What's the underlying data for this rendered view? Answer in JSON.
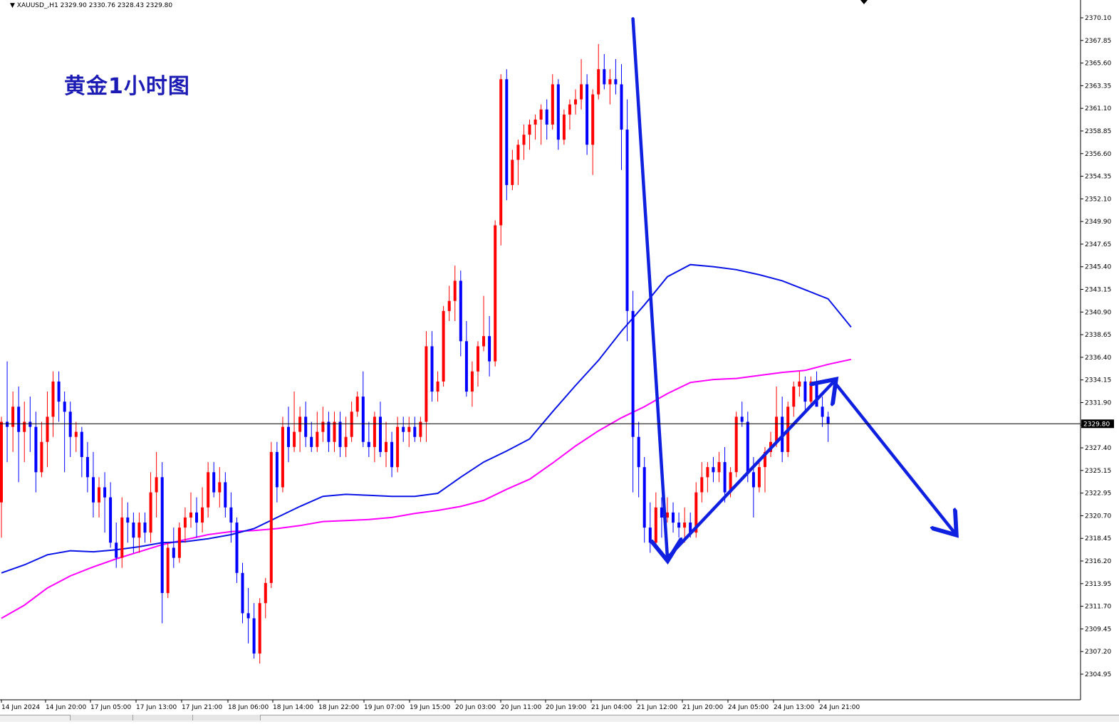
{
  "symbol": {
    "name": "XAUUSD_,H1",
    "ohlc_text": "2329.90 2330.76 2328.43 2329.80"
  },
  "title": "黄金1小时图",
  "colors": {
    "bull": "#ff0000",
    "bear": "#0000ff",
    "ma_fast": "#0a14e6",
    "ma_slow": "#ff00ff",
    "arrow": "#1020e0",
    "price_line": "#000000"
  },
  "chart_data": {
    "type": "candlestick",
    "symbol": "XAUUSD",
    "timeframe": "H1",
    "current_price": "2329.80",
    "y_ticks": [
      "2370.10",
      "2367.85",
      "2365.60",
      "2363.35",
      "2361.10",
      "2358.85",
      "2356.60",
      "2354.35",
      "2352.10",
      "2349.90",
      "2347.65",
      "2345.40",
      "2343.15",
      "2340.90",
      "2338.65",
      "2336.40",
      "2334.15",
      "2331.90",
      "2329.65",
      "2327.40",
      "2325.15",
      "2322.95",
      "2320.70",
      "2318.45",
      "2316.20",
      "2313.95",
      "2311.70",
      "2309.45",
      "2307.20",
      "2304.95"
    ],
    "x_ticks": [
      "14 Jun 2024",
      "14 Jun 20:00",
      "17 Jun 05:00",
      "17 Jun 13:00",
      "17 Jun 21:00",
      "18 Jun 06:00",
      "18 Jun 14:00",
      "18 Jun 22:00",
      "19 Jun 07:00",
      "19 Jun 15:00",
      "20 Jun 03:00",
      "20 Jun 11:00",
      "20 Jun 19:00",
      "21 Jun 04:00",
      "21 Jun 12:00",
      "21 Jun 20:00",
      "24 Jun 05:00",
      "24 Jun 13:00",
      "24 Jun 21:00"
    ],
    "ylim": [
      2304.0,
      2371.5
    ],
    "candles": [
      [
        2322.0,
        2330.5,
        2318.5,
        2330.0
      ],
      [
        2330.0,
        2336.0,
        2326.0,
        2329.5
      ],
      [
        2329.5,
        2333.0,
        2327.0,
        2331.5
      ],
      [
        2331.5,
        2333.5,
        2324.0,
        2329.0
      ],
      [
        2329.0,
        2332.0,
        2326.0,
        2330.0
      ],
      [
        2330.0,
        2332.5,
        2327.0,
        2329.5
      ],
      [
        2329.5,
        2331.0,
        2323.0,
        2325.0
      ],
      [
        2325.0,
        2330.0,
        2324.5,
        2328.0
      ],
      [
        2328.0,
        2333.0,
        2325.5,
        2330.5
      ],
      [
        2330.5,
        2335.0,
        2328.5,
        2334.0
      ],
      [
        2334.0,
        2335.0,
        2330.0,
        2332.0
      ],
      [
        2332.0,
        2333.0,
        2325.0,
        2331.0
      ],
      [
        2331.0,
        2332.0,
        2326.5,
        2328.5
      ],
      [
        2328.5,
        2330.0,
        2327.0,
        2329.0
      ],
      [
        2329.0,
        2329.5,
        2324.5,
        2326.5
      ],
      [
        2326.5,
        2328.0,
        2323.0,
        2324.5
      ],
      [
        2324.5,
        2327.0,
        2320.5,
        2322.0
      ],
      [
        2322.0,
        2324.5,
        2320.5,
        2323.5
      ],
      [
        2323.5,
        2325.0,
        2319.0,
        2322.5
      ],
      [
        2322.5,
        2324.0,
        2317.5,
        2318.0
      ],
      [
        2318.0,
        2320.0,
        2315.5,
        2316.5
      ],
      [
        2316.5,
        2322.5,
        2315.5,
        2320.5
      ],
      [
        2320.5,
        2322.0,
        2318.0,
        2320.0
      ],
      [
        2320.0,
        2321.0,
        2317.0,
        2318.5
      ],
      [
        2318.5,
        2321.0,
        2317.0,
        2320.0
      ],
      [
        2320.0,
        2321.0,
        2318.0,
        2319.0
      ],
      [
        2319.0,
        2325.0,
        2318.0,
        2323.0
      ],
      [
        2323.0,
        2327.0,
        2320.5,
        2324.5
      ],
      [
        2324.5,
        2326.0,
        2310.0,
        2313.0
      ],
      [
        2313.0,
        2318.0,
        2312.5,
        2317.5
      ],
      [
        2317.5,
        2319.5,
        2315.5,
        2316.5
      ],
      [
        2316.5,
        2320.0,
        2316.0,
        2319.5
      ],
      [
        2319.5,
        2321.5,
        2318.0,
        2320.5
      ],
      [
        2320.5,
        2323.0,
        2319.5,
        2321.0
      ],
      [
        2321.0,
        2322.5,
        2318.5,
        2320.0
      ],
      [
        2320.0,
        2323.5,
        2319.0,
        2321.5
      ],
      [
        2321.5,
        2326.0,
        2320.5,
        2325.0
      ],
      [
        2325.0,
        2326.0,
        2322.5,
        2323.0
      ],
      [
        2323.0,
        2325.5,
        2321.5,
        2324.0
      ],
      [
        2324.0,
        2325.0,
        2320.5,
        2321.5
      ],
      [
        2321.5,
        2323.0,
        2318.0,
        2320.0
      ],
      [
        2320.0,
        2320.5,
        2314.0,
        2315.0
      ],
      [
        2315.0,
        2316.0,
        2310.0,
        2311.0
      ],
      [
        2311.0,
        2313.5,
        2308.0,
        2310.5
      ],
      [
        2310.5,
        2312.0,
        2306.5,
        2307.0
      ],
      [
        2307.0,
        2312.5,
        2306.0,
        2312.0
      ],
      [
        2312.0,
        2314.5,
        2310.5,
        2314.0
      ],
      [
        2314.0,
        2328.0,
        2313.5,
        2327.0
      ],
      [
        2327.0,
        2328.0,
        2322.0,
        2323.5
      ],
      [
        2323.5,
        2330.5,
        2323.0,
        2329.5
      ],
      [
        2329.5,
        2331.5,
        2326.0,
        2327.5
      ],
      [
        2327.5,
        2333.0,
        2327.0,
        2329.0
      ],
      [
        2329.0,
        2331.5,
        2327.0,
        2330.5
      ],
      [
        2330.5,
        2332.0,
        2327.5,
        2328.5
      ],
      [
        2328.5,
        2330.0,
        2327.0,
        2327.5
      ],
      [
        2327.5,
        2331.0,
        2327.0,
        2329.0
      ],
      [
        2329.0,
        2331.5,
        2328.0,
        2330.0
      ],
      [
        2330.0,
        2331.0,
        2327.0,
        2328.0
      ],
      [
        2328.0,
        2331.0,
        2327.0,
        2330.0
      ],
      [
        2330.0,
        2331.0,
        2326.5,
        2327.5
      ],
      [
        2327.5,
        2330.5,
        2326.5,
        2328.5
      ],
      [
        2328.5,
        2332.0,
        2328.0,
        2331.0
      ],
      [
        2331.0,
        2333.0,
        2330.5,
        2332.5
      ],
      [
        2332.5,
        2335.0,
        2327.5,
        2328.0
      ],
      [
        2328.0,
        2330.0,
        2326.5,
        2327.5
      ],
      [
        2327.5,
        2331.0,
        2326.0,
        2330.5
      ],
      [
        2330.5,
        2332.0,
        2326.5,
        2327.0
      ],
      [
        2327.0,
        2330.0,
        2325.5,
        2328.0
      ],
      [
        2328.0,
        2329.0,
        2324.5,
        2325.5
      ],
      [
        2325.5,
        2330.5,
        2325.0,
        2329.5
      ],
      [
        2329.5,
        2330.5,
        2328.0,
        2329.0
      ],
      [
        2329.0,
        2330.5,
        2327.5,
        2329.5
      ],
      [
        2329.5,
        2330.5,
        2328.0,
        2328.5
      ],
      [
        2328.5,
        2330.5,
        2328.0,
        2330.0
      ],
      [
        2330.0,
        2339.0,
        2328.0,
        2337.5
      ],
      [
        2337.5,
        2339.0,
        2332.0,
        2333.0
      ],
      [
        2333.0,
        2335.0,
        2332.0,
        2334.0
      ],
      [
        2334.0,
        2341.5,
        2333.5,
        2341.0
      ],
      [
        2341.0,
        2343.5,
        2340.0,
        2342.0
      ],
      [
        2342.0,
        2345.5,
        2340.0,
        2344.0
      ],
      [
        2344.0,
        2345.0,
        2336.5,
        2338.0
      ],
      [
        2338.0,
        2340.0,
        2332.5,
        2333.0
      ],
      [
        2333.0,
        2336.0,
        2331.5,
        2335.0
      ],
      [
        2335.0,
        2338.0,
        2333.5,
        2337.5
      ],
      [
        2337.5,
        2342.5,
        2337.0,
        2338.5
      ],
      [
        2338.5,
        2340.5,
        2334.5,
        2336.0
      ],
      [
        2336.0,
        2350.0,
        2335.5,
        2349.5
      ],
      [
        2349.5,
        2364.5,
        2347.5,
        2364.0
      ],
      [
        2364.0,
        2365.0,
        2352.0,
        2353.5
      ],
      [
        2353.5,
        2357.0,
        2353.0,
        2356.0
      ],
      [
        2356.0,
        2358.0,
        2353.5,
        2357.5
      ],
      [
        2357.5,
        2359.5,
        2356.0,
        2358.5
      ],
      [
        2358.5,
        2360.0,
        2357.0,
        2359.5
      ],
      [
        2359.5,
        2360.5,
        2358.0,
        2360.0
      ],
      [
        2360.0,
        2361.5,
        2357.5,
        2361.0
      ],
      [
        2361.0,
        2362.0,
        2358.0,
        2359.5
      ],
      [
        2359.5,
        2364.5,
        2359.0,
        2363.5
      ],
      [
        2363.5,
        2364.0,
        2357.0,
        2358.0
      ],
      [
        2358.0,
        2361.0,
        2357.5,
        2360.5
      ],
      [
        2360.5,
        2362.0,
        2359.0,
        2361.5
      ],
      [
        2361.5,
        2363.0,
        2360.5,
        2362.0
      ],
      [
        2362.0,
        2366.0,
        2361.0,
        2363.5
      ],
      [
        2363.5,
        2364.5,
        2356.5,
        2357.5
      ],
      [
        2357.5,
        2363.0,
        2354.5,
        2362.5
      ],
      [
        2362.5,
        2367.5,
        2362.0,
        2365.0
      ],
      [
        2365.0,
        2366.5,
        2363.0,
        2363.5
      ],
      [
        2363.5,
        2365.0,
        2361.5,
        2364.0
      ],
      [
        2364.0,
        2366.0,
        2362.5,
        2363.5
      ],
      [
        2363.5,
        2365.5,
        2355.0,
        2359.0
      ],
      [
        2359.0,
        2362.0,
        2338.0,
        2341.0
      ],
      [
        2341.0,
        2343.0,
        2323.0,
        2328.5
      ],
      [
        2328.5,
        2330.0,
        2322.5,
        2325.5
      ],
      [
        2325.5,
        2326.5,
        2318.0,
        2319.5
      ],
      [
        2319.5,
        2322.0,
        2317.0,
        2318.0
      ],
      [
        2318.0,
        2323.0,
        2317.5,
        2321.5
      ],
      [
        2321.5,
        2322.5,
        2318.5,
        2320.5
      ],
      [
        2320.5,
        2322.5,
        2320.0,
        2321.0
      ],
      [
        2321.0,
        2322.0,
        2319.0,
        2320.0
      ],
      [
        2320.0,
        2321.0,
        2318.5,
        2319.5
      ],
      [
        2319.5,
        2321.5,
        2318.0,
        2320.0
      ],
      [
        2320.0,
        2321.0,
        2318.5,
        2319.0
      ],
      [
        2319.0,
        2324.0,
        2318.5,
        2323.0
      ],
      [
        2323.0,
        2326.0,
        2322.0,
        2324.5
      ],
      [
        2324.5,
        2326.0,
        2323.0,
        2325.5
      ],
      [
        2325.5,
        2326.5,
        2324.0,
        2325.0
      ],
      [
        2325.0,
        2327.0,
        2324.0,
        2326.0
      ],
      [
        2326.0,
        2327.5,
        2322.0,
        2323.0
      ],
      [
        2323.0,
        2325.5,
        2322.5,
        2325.0
      ],
      [
        2325.0,
        2331.0,
        2324.5,
        2330.5
      ],
      [
        2330.5,
        2332.0,
        2329.5,
        2330.0
      ],
      [
        2330.0,
        2331.0,
        2324.0,
        2325.0
      ],
      [
        2325.0,
        2326.5,
        2320.5,
        2323.5
      ],
      [
        2323.5,
        2326.0,
        2323.0,
        2325.5
      ],
      [
        2325.5,
        2327.5,
        2323.0,
        2327.0
      ],
      [
        2327.0,
        2329.0,
        2326.5,
        2328.0
      ],
      [
        2328.0,
        2333.5,
        2327.5,
        2330.5
      ],
      [
        2330.5,
        2332.5,
        2326.0,
        2327.0
      ],
      [
        2327.0,
        2332.0,
        2326.5,
        2331.5
      ],
      [
        2331.5,
        2334.0,
        2330.5,
        2333.5
      ],
      [
        2333.5,
        2335.0,
        2332.5,
        2334.0
      ],
      [
        2334.0,
        2334.5,
        2331.0,
        2332.0
      ],
      [
        2332.0,
        2334.5,
        2331.5,
        2334.0
      ],
      [
        2334.0,
        2335.0,
        2331.5,
        2331.5
      ],
      [
        2331.5,
        2332.5,
        2329.5,
        2330.5
      ],
      [
        2330.5,
        2331.0,
        2328.0,
        2329.8
      ]
    ],
    "ma_fast_values": [
      2315.0,
      2315.8,
      2316.8,
      2317.2,
      2317.1,
      2317.3,
      2317.6,
      2318.0,
      2318.1,
      2318.4,
      2318.8,
      2319.4,
      2320.5,
      2321.6,
      2322.6,
      2322.8,
      2322.7,
      2322.6,
      2322.6,
      2322.9,
      2324.5,
      2326.0,
      2327.1,
      2328.3,
      2331.0,
      2333.6,
      2336.1,
      2339.0,
      2341.6,
      2344.4,
      2345.6,
      2345.4,
      2345.1,
      2344.6,
      2344.0,
      2343.1,
      2342.2,
      2339.4
    ],
    "ma_slow_values": [
      2310.5,
      2311.8,
      2313.5,
      2314.7,
      2315.6,
      2316.4,
      2317.1,
      2317.8,
      2318.3,
      2318.8,
      2319.1,
      2319.2,
      2319.4,
      2319.7,
      2320.1,
      2320.2,
      2320.3,
      2320.5,
      2320.9,
      2321.2,
      2321.6,
      2322.2,
      2323.3,
      2324.3,
      2325.9,
      2327.6,
      2329.1,
      2330.4,
      2331.5,
      2332.8,
      2333.9,
      2334.2,
      2334.3,
      2334.6,
      2334.9,
      2335.1,
      2335.7,
      2336.2
    ],
    "annotation_arrows": [
      {
        "from": [
          110,
          2370.0
        ],
        "to": [
          116,
          2316.5
        ],
        "label": ""
      },
      {
        "from": [
          116,
          2316.5
        ],
        "to": [
          145,
          2334.0
        ],
        "label": ""
      },
      {
        "from": [
          145,
          2334.0
        ],
        "to": [
          166,
          2319.0
        ],
        "label": ""
      }
    ]
  }
}
